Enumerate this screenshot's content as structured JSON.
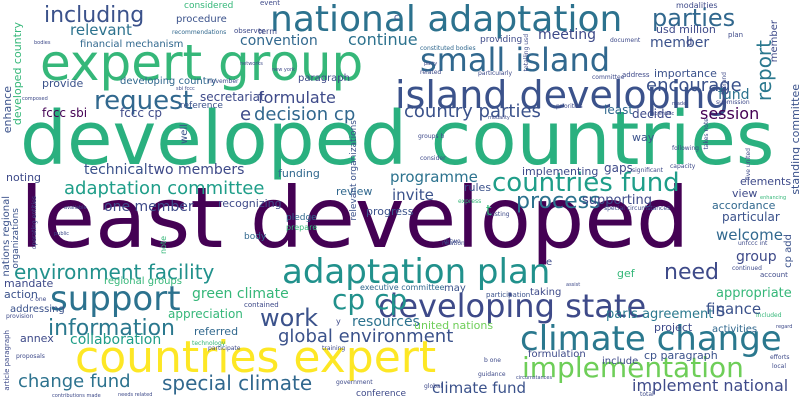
{
  "cloud": {
    "words": {
      "least_developed": "least developed",
      "developed_countries": "developed countries",
      "expert_group": "expert group",
      "national_adaptation": "national adaptation",
      "countries_expert": "countries expert",
      "island_developing": "island developing",
      "adaptation_plan": "adaptation plan",
      "climate_change": "climate change",
      "developing_state": "developing state",
      "small_island": "small island",
      "countries_fund": "countries fund",
      "implementation": "implementation",
      "support": "support",
      "including": "including",
      "parties": "parties",
      "request": "request",
      "cp_cp": "cp cp",
      "work_big": "work",
      "information": "information",
      "environment_facility": "environment facility",
      "process": "process",
      "adaptation_committee": "adaptation committee",
      "special_climate": "special climate",
      "change_fund": "change fund",
      "global_environment": "global environment",
      "need": "need",
      "report": "report",
      "decision_cp": "decision cp",
      "country_parties": "country parties",
      "formulate": "formulate",
      "encourage": "encourage",
      "continue": "continue",
      "convention": "convention",
      "meeting": "meeting",
      "member": "member",
      "relevant": "relevant",
      "collaboration": "collaboration",
      "implement_national": "implement national",
      "climate_fund": "climate fund",
      "session": "session",
      "green_climate": "green climate",
      "technical": "technical",
      "two_members": "two members",
      "one_member": "one member",
      "invite": "invite",
      "programme": "programme",
      "welcome": "welcome",
      "group": "group",
      "finance": "finance",
      "fund": "fund",
      "resources": "resources",
      "paris_agreement": "paris agreement",
      "usd_million": "usd million",
      "financial_mechanism": "financial mechanism",
      "enhance": "enhance",
      "developed_country_v": "developed country",
      "fccc_sbi": "fccc sbi",
      "fccc_cp": "fccc cp",
      "provide": "provide",
      "secretariat": "secretariat",
      "developing_country": "developing country",
      "paragraph": "paragraph",
      "reference": "reference",
      "supporting": "supporting",
      "progress": "progress",
      "recognizing": "recognizing",
      "review": "review",
      "rules": "rules",
      "noting": "noting",
      "mandate": "mandate",
      "action": "action",
      "annex": "annex",
      "addressing": "addressing",
      "appropriate": "appropriate",
      "particular": "particular",
      "view": "view",
      "accordance": "accordance",
      "elements": "elements",
      "importance": "importance",
      "decide": "decide",
      "least_small": "least",
      "way": "way",
      "gaps": "gaps",
      "implementing": "implementing",
      "funding": "funding",
      "united_nations": "united nations",
      "referred": "referred",
      "appreciation": "appreciation",
      "regional_groups": "regional groups",
      "project": "project",
      "activities": "activities",
      "formulation": "formulation",
      "cp_paragraph": "cp paragraph",
      "include": "include",
      "may": "may",
      "taking": "taking",
      "gef": "gef",
      "participation": "participation",
      "executive_committee": "executive committee",
      "body": "body",
      "pledge": "pledge",
      "prepare": "prepare",
      "nations_regional": "nations regional",
      "organizations": "organizations",
      "relevant_organizations": "relevant organizations",
      "considered": "considered",
      "procedure": "procedure",
      "modalities": "modalities",
      "event": "event",
      "observer": "observer",
      "recommendations": "recommendations",
      "term": "term",
      "providing": "providing",
      "constituted_bodies": "constituted bodies",
      "document": "document",
      "plan": "plan",
      "address": "address",
      "committee": "committee",
      "related": "related",
      "particularly": "particularly",
      "submission": "submission",
      "ireland": "ireland",
      "standing_committee": "standing committee",
      "five_united": "five united",
      "existing": "existing",
      "capacity": "capacity",
      "following": "following",
      "consider": "consider",
      "significant": "significant",
      "special_circumstances": "special circumstances",
      "contained": "contained",
      "technology": "technology",
      "training": "training",
      "proposals": "proposals",
      "article_paragraph": "article paragraph",
      "contributions_made": "contributions made",
      "composed": "composed",
      "provision": "provision",
      "public": "public",
      "available": "available",
      "operating_entities": "operating entities",
      "guidance": "guidance",
      "conference": "conference",
      "circumstances": "circumstances",
      "government": "government",
      "participate": "participate",
      "needs_related": "needs related",
      "total": "total",
      "global": "global",
      "efforts": "efforts",
      "local": "local",
      "regard": "regard",
      "included": "included",
      "continued": "continued",
      "account": "account",
      "unfccc_int": "unfccc int",
      "relation": "relation",
      "express": "express",
      "enhancing": "enhancing",
      "assist": "assist",
      "c_one": "c one",
      "b_one": "b one",
      "d_two": "d two",
      "party": "party",
      "note": "note",
      "well": "well",
      "e": "e",
      "s": "s",
      "t": "t",
      "d": "d",
      "c": "c",
      "e2": "e",
      "y": "y",
      "groups_b": "groups b",
      "sbi_fccc": "sbi fccc",
      "bodies": "bodies",
      "new_york": "new york",
      "november": "november",
      "scientific": "scientific",
      "made": "made",
      "takes_note": "takes note",
      "priorities": "priorities",
      "modality": "modality",
      "totalling_usd": "totalling usd",
      "cp_add": "cp add",
      "member_v": "member",
      "networks": "networks"
    }
  }
}
